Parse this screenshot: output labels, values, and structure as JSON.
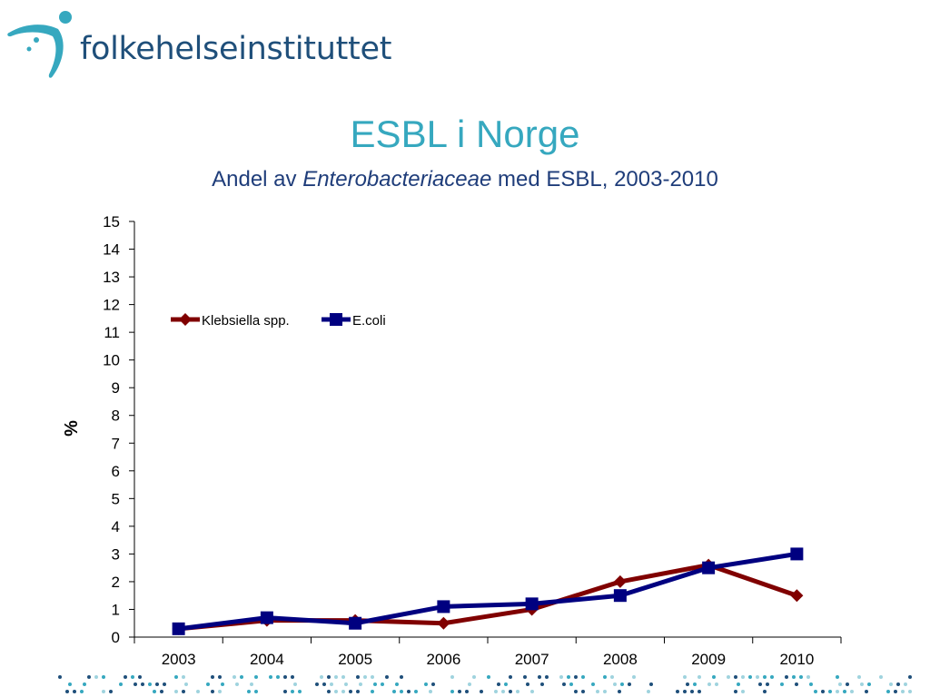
{
  "logo": {
    "text": "folkehelseinstituttet"
  },
  "colors": {
    "title": "#36a8bf",
    "subtitle": "#1f3d7a",
    "logo": "#1f4f7a",
    "klebsiella": "#800000",
    "ecoli": "#000080"
  },
  "chart_data": {
    "type": "line",
    "title": "ESBL i Norge",
    "subtitle": {
      "prefix": "Andel av ",
      "italic": "Enterobacteriaceae",
      "suffix": " med ESBL, 2003-2010"
    },
    "xlabel": "",
    "ylabel": "%",
    "categories": [
      "2003",
      "2004",
      "2005",
      "2006",
      "2007",
      "2008",
      "2009",
      "2010"
    ],
    "ylim": [
      0,
      15
    ],
    "yticks": [
      0,
      1,
      2,
      3,
      4,
      5,
      6,
      7,
      8,
      9,
      10,
      11,
      12,
      13,
      14,
      15
    ],
    "grid": false,
    "legend": "top-left",
    "series": [
      {
        "name": "Klebsiella spp.",
        "marker": "diamond",
        "color": "#800000",
        "values": [
          0.3,
          0.6,
          0.6,
          0.5,
          1.0,
          2.0,
          2.6,
          1.5
        ]
      },
      {
        "name": "E.coli",
        "marker": "square",
        "color": "#000080",
        "values": [
          0.3,
          0.7,
          0.5,
          1.1,
          1.2,
          1.5,
          2.5,
          3.0
        ]
      }
    ]
  }
}
